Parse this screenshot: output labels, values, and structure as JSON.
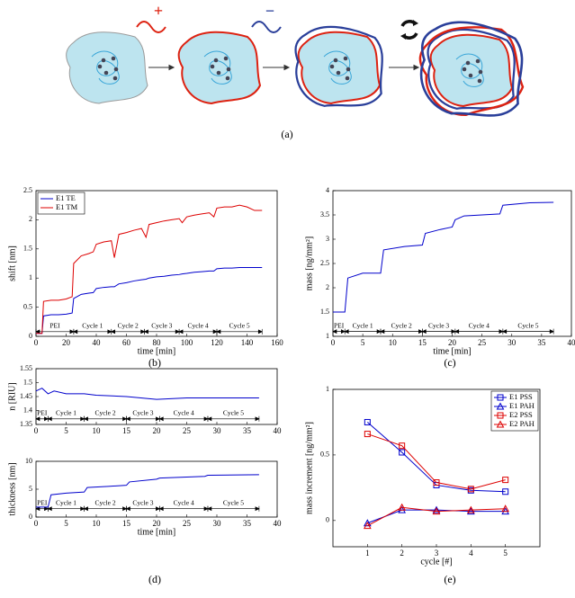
{
  "panel_labels": [
    "(a)",
    "(b)",
    "(c)",
    "(d)",
    "(e)"
  ],
  "diagram": {
    "symbols": [
      "+",
      "−"
    ]
  },
  "chart_data": [
    {
      "type": "line",
      "xlabel": "time [min]",
      "ylabel": "shift [nm]",
      "legend": "upper left",
      "x": [
        0,
        4,
        5,
        10,
        15,
        20,
        24,
        25,
        30,
        35,
        38,
        40,
        45,
        50,
        52,
        55,
        60,
        65,
        70,
        73,
        75,
        80,
        85,
        90,
        95,
        97,
        100,
        105,
        110,
        115,
        118,
        120,
        125,
        130,
        135,
        140,
        145,
        150
      ],
      "series": [
        {
          "name": "E1 TE",
          "color": "#0000cc",
          "values": [
            0.05,
            0.05,
            0.35,
            0.37,
            0.37,
            0.38,
            0.4,
            0.65,
            0.72,
            0.74,
            0.75,
            0.82,
            0.84,
            0.85,
            0.85,
            0.9,
            0.92,
            0.95,
            0.97,
            0.98,
            1.0,
            1.02,
            1.03,
            1.05,
            1.06,
            1.07,
            1.08,
            1.1,
            1.11,
            1.12,
            1.12,
            1.16,
            1.17,
            1.17,
            1.18,
            1.18,
            1.18,
            1.18
          ]
        },
        {
          "name": "E1 TM",
          "color": "#dd0000",
          "values": [
            0.05,
            0.05,
            0.6,
            0.62,
            0.62,
            0.64,
            0.68,
            1.25,
            1.38,
            1.42,
            1.45,
            1.58,
            1.62,
            1.64,
            1.35,
            1.75,
            1.78,
            1.82,
            1.85,
            1.7,
            1.92,
            1.95,
            1.98,
            2.0,
            2.02,
            1.95,
            2.05,
            2.08,
            2.1,
            2.12,
            2.05,
            2.2,
            2.22,
            2.22,
            2.25,
            2.22,
            2.16,
            2.16
          ]
        }
      ],
      "xlim": [
        0,
        160
      ],
      "xticks": [
        0,
        20,
        40,
        60,
        80,
        100,
        120,
        140,
        160
      ],
      "ylim": [
        0,
        2.5
      ],
      "yticks": [
        0,
        0.5,
        1,
        1.5,
        2,
        2.5
      ],
      "annotations": [
        {
          "text": "PEI",
          "x": [
            0,
            25
          ],
          "y": 0.08
        },
        {
          "text": "Cycle 1",
          "x": [
            25,
            50
          ],
          "y": 0.08
        },
        {
          "text": "Cycle 2",
          "x": [
            50,
            72
          ],
          "y": 0.08
        },
        {
          "text": "Cycle 3",
          "x": [
            72,
            95
          ],
          "y": 0.08
        },
        {
          "text": "Cycle 4",
          "x": [
            95,
            120
          ],
          "y": 0.08
        },
        {
          "text": "Cycle 5",
          "x": [
            120,
            150
          ],
          "y": 0.08
        }
      ]
    },
    {
      "type": "line",
      "xlabel": "time [min]",
      "ylabel": "mass [ng/mm²]",
      "color": "#0000cc",
      "x": [
        0,
        2,
        2.5,
        5,
        8,
        8.5,
        12,
        15,
        15.5,
        18,
        20,
        20.5,
        22,
        28,
        28.5,
        33,
        37
      ],
      "values": [
        1.5,
        1.5,
        2.2,
        2.3,
        2.3,
        2.78,
        2.85,
        2.88,
        3.12,
        3.2,
        3.25,
        3.4,
        3.48,
        3.52,
        3.7,
        3.75,
        3.76
      ],
      "xlim": [
        0,
        40
      ],
      "xticks": [
        0,
        5,
        10,
        15,
        20,
        25,
        30,
        35,
        40
      ],
      "ylim": [
        1,
        4
      ],
      "yticks": [
        1,
        1.5,
        2,
        2.5,
        3,
        3.5,
        4
      ],
      "annotations": [
        {
          "text": "PEI",
          "x": [
            0,
            2
          ],
          "y": 1.1
        },
        {
          "text": "Cycle 1",
          "x": [
            2,
            8
          ],
          "y": 1.1
        },
        {
          "text": "Cycle 2",
          "x": [
            8,
            15
          ],
          "y": 1.1
        },
        {
          "text": "Cycle 3",
          "x": [
            15,
            20.5
          ],
          "y": 1.1
        },
        {
          "text": "Cycle 4",
          "x": [
            20.5,
            28.5
          ],
          "y": 1.1
        },
        {
          "text": "Cycle 5",
          "x": [
            28.5,
            37
          ],
          "y": 1.1
        }
      ]
    },
    {
      "type": "line",
      "ylabel": "n [RIU]",
      "color": "#0000cc",
      "x": [
        0,
        1,
        2,
        3,
        5,
        8,
        10,
        15,
        20,
        25,
        30,
        37
      ],
      "values": [
        1.47,
        1.48,
        1.46,
        1.47,
        1.46,
        1.46,
        1.455,
        1.45,
        1.44,
        1.445,
        1.445,
        1.445
      ],
      "xlim": [
        0,
        40
      ],
      "xticks": [
        0,
        5,
        10,
        15,
        20,
        25,
        30,
        35,
        40
      ],
      "ylim": [
        1.35,
        1.55
      ],
      "yticks": [
        1.35,
        1.4,
        1.45,
        1.5,
        1.55
      ],
      "annotations": [
        {
          "text": "PEI",
          "x": [
            0,
            2
          ],
          "y": 1.37
        },
        {
          "text": "Cycle 1",
          "x": [
            2,
            8
          ],
          "y": 1.37
        },
        {
          "text": "Cycle 2",
          "x": [
            8,
            15
          ],
          "y": 1.37
        },
        {
          "text": "Cycle 3",
          "x": [
            15,
            20.5
          ],
          "y": 1.37
        },
        {
          "text": "Cycle 4",
          "x": [
            20.5,
            28.5
          ],
          "y": 1.37
        },
        {
          "text": "Cycle 5",
          "x": [
            28.5,
            37
          ],
          "y": 1.37
        }
      ]
    },
    {
      "type": "line",
      "xlabel": "time [min]",
      "ylabel": "thickness [nm]",
      "color": "#0000cc",
      "x": [
        0,
        2,
        2.5,
        5,
        8,
        8.5,
        12,
        15,
        15.5,
        20,
        20.5,
        28,
        28.5,
        37
      ],
      "values": [
        1.8,
        1.8,
        4,
        4.3,
        4.5,
        5.3,
        5.5,
        5.7,
        6.3,
        6.8,
        7,
        7.3,
        7.5,
        7.6
      ],
      "xlim": [
        0,
        40
      ],
      "xticks": [
        0,
        5,
        10,
        15,
        20,
        25,
        30,
        35,
        40
      ],
      "ylim": [
        0,
        10
      ],
      "yticks": [
        0,
        5,
        10
      ],
      "annotations": [
        {
          "text": "PEI",
          "x": [
            0,
            2
          ],
          "y": 1.5
        },
        {
          "text": "Cycle 1",
          "x": [
            2,
            8
          ],
          "y": 1.5
        },
        {
          "text": "Cycle 2",
          "x": [
            8,
            15
          ],
          "y": 1.5
        },
        {
          "text": "Cycle 3",
          "x": [
            15,
            20.5
          ],
          "y": 1.5
        },
        {
          "text": "Cycle 4",
          "x": [
            20.5,
            28.5
          ],
          "y": 1.5
        },
        {
          "text": "Cycle 5",
          "x": [
            28.5,
            37
          ],
          "y": 1.5
        }
      ]
    },
    {
      "type": "line",
      "xlabel": "cycle [#]",
      "ylabel": "mass increment [ng/mm²]",
      "legend": "upper right",
      "x": [
        1,
        2,
        3,
        4,
        5
      ],
      "series": [
        {
          "name": "E1 PSS",
          "color": "#0000cc",
          "marker": "square",
          "values": [
            0.75,
            0.52,
            0.27,
            0.23,
            0.22
          ]
        },
        {
          "name": "E1 PAH",
          "color": "#0000cc",
          "marker": "triangle",
          "values": [
            -0.02,
            0.08,
            0.08,
            0.07,
            0.07
          ]
        },
        {
          "name": "E2 PSS",
          "color": "#dd0000",
          "marker": "square",
          "values": [
            0.66,
            0.57,
            0.29,
            0.24,
            0.31
          ]
        },
        {
          "name": "E2 PAH",
          "color": "#dd0000",
          "marker": "triangle",
          "values": [
            -0.04,
            0.1,
            0.07,
            0.08,
            0.09
          ]
        }
      ],
      "xlim": [
        0,
        6
      ],
      "xticks": [
        1,
        2,
        3,
        4,
        5
      ],
      "ylim": [
        -0.2,
        1
      ],
      "yticks": [
        0,
        0.5,
        1
      ]
    }
  ]
}
